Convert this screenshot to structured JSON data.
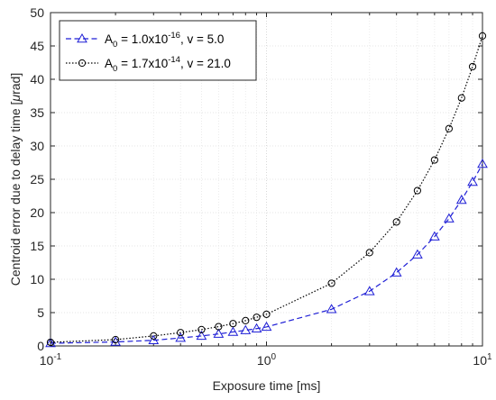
{
  "chart_data": {
    "type": "line",
    "xlabel": "Exposure time [ms]",
    "ylabel_prefix": "Centroid error due to delay time [",
    "ylabel_mu": "μ",
    "ylabel_suffix": "rad]",
    "xscale": "log",
    "xlim": [
      0.1,
      10
    ],
    "ylim": [
      0,
      50
    ],
    "xticks": [
      {
        "value": 0.1,
        "base": "10",
        "exp": "-1"
      },
      {
        "value": 1,
        "base": "10",
        "exp": "0"
      },
      {
        "value": 10,
        "base": "10",
        "exp": "1"
      }
    ],
    "yticks": [
      0,
      5,
      10,
      15,
      20,
      25,
      30,
      35,
      40,
      45,
      50
    ],
    "grid": true,
    "legend_position": "top-left",
    "series": [
      {
        "legend": {
          "a": "A",
          "a_sub": "0",
          "mid": " = 1.0x10",
          "exp": "-16",
          "tail": ", v = 5.0"
        },
        "color": "#1f1fd6",
        "marker": "triangle",
        "line_style": "dashed",
        "x": [
          0.1,
          0.2,
          0.3,
          0.4,
          0.5,
          0.6,
          0.7,
          0.8,
          0.9,
          1.0,
          2.0,
          3.0,
          4.0,
          5.0,
          6.0,
          7.0,
          8.0,
          9.0,
          10.0
        ],
        "y": [
          0.4,
          0.6,
          0.85,
          1.2,
          1.5,
          1.8,
          2.1,
          2.35,
          2.6,
          2.85,
          5.5,
          8.2,
          11.0,
          13.7,
          16.4,
          19.1,
          21.9,
          24.6,
          27.3
        ]
      },
      {
        "legend": {
          "a": "A",
          "a_sub": "0",
          "mid": " = 1.7x10",
          "exp": "-14",
          "tail": ", v = 21.0"
        },
        "color": "#000000",
        "marker": "circle",
        "line_style": "dotted",
        "x": [
          0.1,
          0.2,
          0.3,
          0.4,
          0.5,
          0.6,
          0.7,
          0.8,
          0.9,
          1.0,
          2.0,
          3.0,
          4.0,
          5.0,
          6.0,
          7.0,
          8.0,
          9.0,
          10.0
        ],
        "y": [
          0.55,
          0.95,
          1.5,
          2.0,
          2.45,
          2.9,
          3.35,
          3.8,
          4.3,
          4.75,
          9.4,
          14.0,
          18.6,
          23.3,
          27.9,
          32.6,
          37.2,
          41.9,
          46.5
        ]
      }
    ]
  }
}
